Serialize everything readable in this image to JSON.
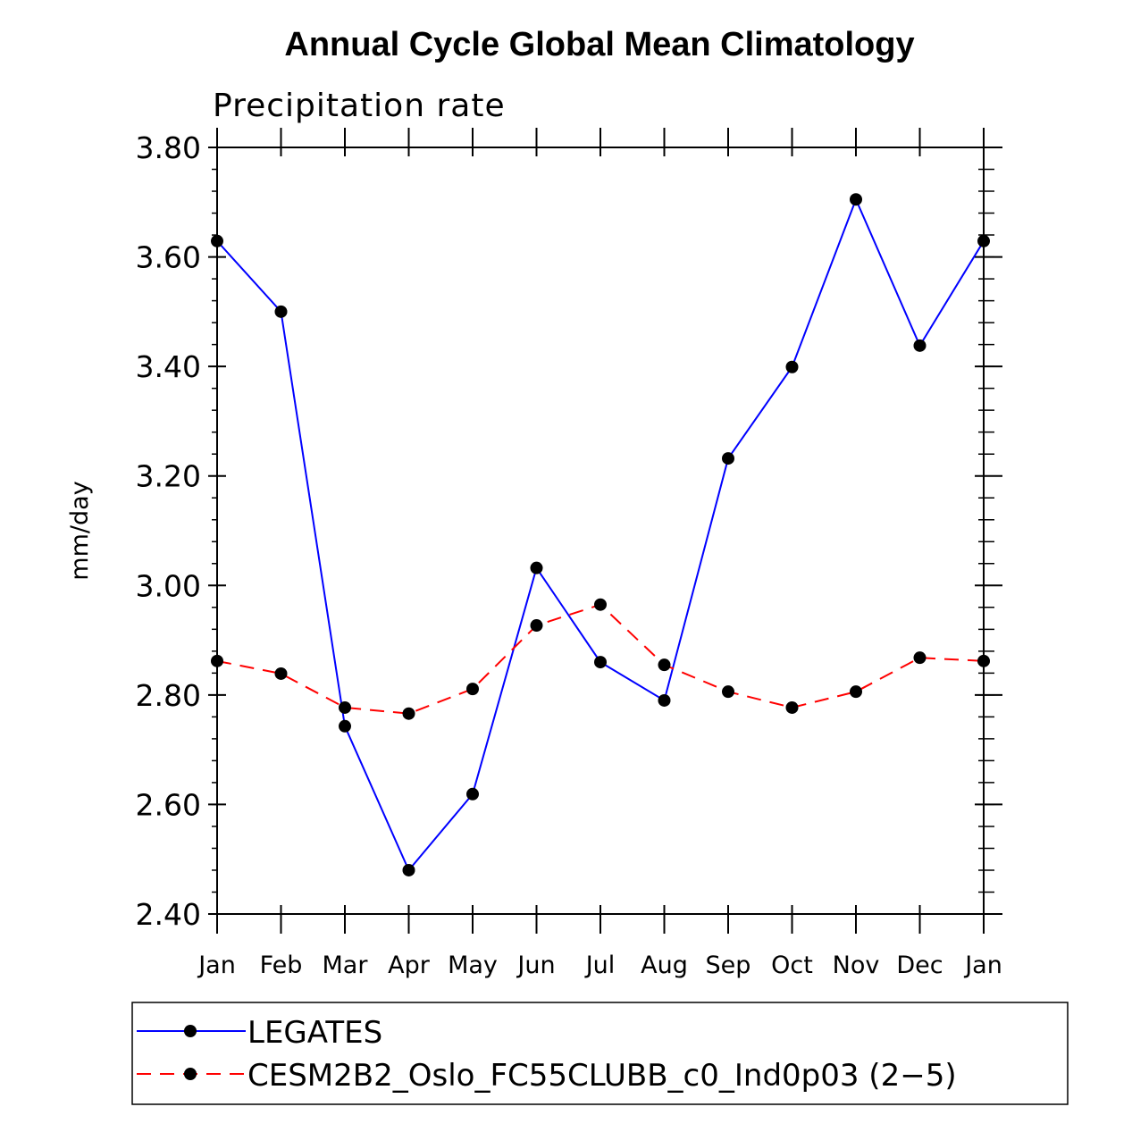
{
  "chart_data": {
    "type": "line",
    "title": "Annual Cycle Global Mean Climatology",
    "subtitle": "Precipitation rate",
    "xlabel": "",
    "ylabel": "mm/day",
    "ylim": [
      2.4,
      3.8
    ],
    "yticks": [
      "2.40",
      "2.60",
      "2.80",
      "3.00",
      "3.20",
      "3.40",
      "3.60",
      "3.80"
    ],
    "categories": [
      "Jan",
      "Feb",
      "Mar",
      "Apr",
      "May",
      "Jun",
      "Jul",
      "Aug",
      "Sep",
      "Oct",
      "Nov",
      "Dec",
      "Jan"
    ],
    "grid": false,
    "legend_position": "bottom",
    "series": [
      {
        "name": "LEGATES",
        "color": "#0000ff",
        "dash": false,
        "values": [
          3.629,
          3.5,
          2.743,
          2.48,
          2.619,
          3.032,
          2.86,
          2.79,
          3.232,
          3.399,
          3.705,
          3.438,
          3.629
        ]
      },
      {
        "name": "CESM2B2_Oslo_FC55CLUBB_c0_Ind0p03 (2−5)",
        "color": "#ff0000",
        "dash": true,
        "values": [
          2.862,
          2.839,
          2.777,
          2.766,
          2.811,
          2.927,
          2.965,
          2.855,
          2.806,
          2.777,
          2.806,
          2.868,
          2.862
        ]
      }
    ]
  }
}
